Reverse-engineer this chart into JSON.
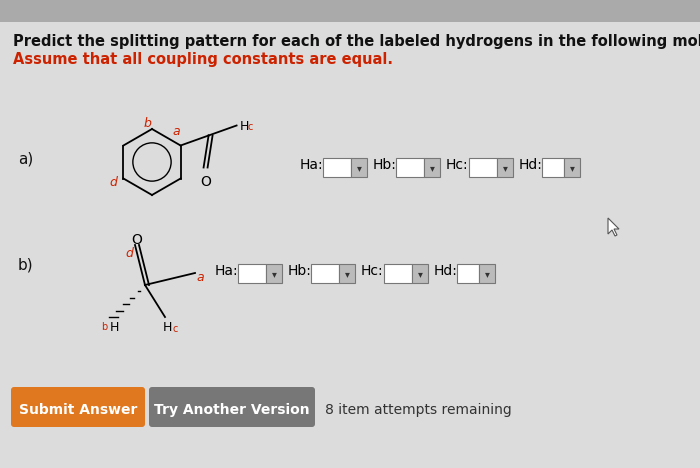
{
  "bg_color": "#c8c8c8",
  "content_bg": "#dcdcdc",
  "title_line1": "Predict the splitting pattern for each of the labeled hydrogens in the following molecules.",
  "title_line2": "Assume that all coupling constants are equal.",
  "title_color": "#111111",
  "subtitle_color": "#cc2200",
  "label_a": "a)",
  "label_b": "b)",
  "ha_label": "Ha:",
  "hb_label": "Hb:",
  "hc_label": "Hc:",
  "hd_label": "Hd:",
  "button1_text": "Submit Answer",
  "button1_color": "#e07820",
  "button2_text": "Try Another Version",
  "button2_color": "#777777",
  "attempts_text": "8 item attempts remaining",
  "red_label_color": "#cc2200"
}
